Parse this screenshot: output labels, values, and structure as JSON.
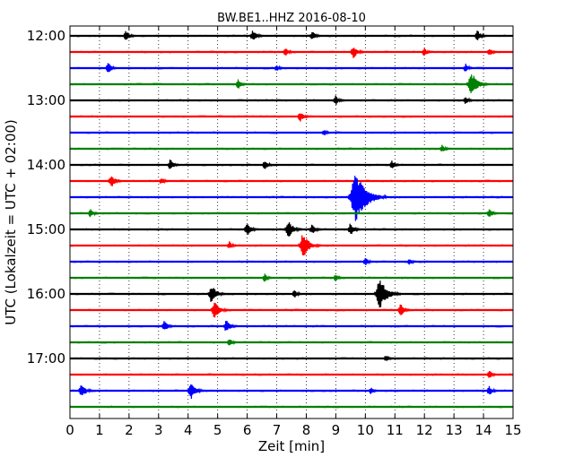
{
  "chart_data": {
    "type": "line",
    "title": "BW.BE1..HHZ 2016-08-10",
    "xlabel": "Zeit  [min]",
    "ylabel": "UTC (Lokalzeit = UTC + 02:00)",
    "xlim": [
      0,
      15
    ],
    "x_ticks": [
      "0",
      "1",
      "2",
      "3",
      "4",
      "5",
      "6",
      "7",
      "8",
      "9",
      "10",
      "11",
      "12",
      "13",
      "14",
      "15"
    ],
    "y_tick_labels": [
      "12:00",
      "13:00",
      "14:00",
      "15:00",
      "16:00",
      "17:00"
    ],
    "grid": "vertical dotted",
    "row_interval_minutes": 15,
    "colors": [
      "#000000",
      "#ff0000",
      "#0000ff",
      "#008000"
    ],
    "rows": [
      {
        "start": "12:00",
        "events": [
          [
            1.9,
            0.45
          ],
          [
            6.2,
            0.5
          ],
          [
            8.2,
            0.4
          ],
          [
            13.8,
            0.45
          ]
        ]
      },
      {
        "start": "12:15",
        "events": [
          [
            7.3,
            0.35
          ],
          [
            9.6,
            0.55
          ],
          [
            12.0,
            0.35
          ],
          [
            14.2,
            0.35
          ]
        ]
      },
      {
        "start": "12:30",
        "events": [
          [
            1.3,
            0.45
          ],
          [
            7.0,
            0.3
          ],
          [
            13.4,
            0.35
          ]
        ]
      },
      {
        "start": "12:45",
        "events": [
          [
            5.7,
            0.4
          ],
          [
            13.6,
            1.0
          ]
        ]
      },
      {
        "start": "13:00",
        "events": [
          [
            9.0,
            0.4
          ],
          [
            13.4,
            0.35
          ]
        ]
      },
      {
        "start": "13:15",
        "events": [
          [
            7.8,
            0.45
          ]
        ]
      },
      {
        "start": "13:30",
        "events": [
          [
            8.6,
            0.3
          ]
        ]
      },
      {
        "start": "13:45",
        "events": [
          [
            12.6,
            0.35
          ]
        ]
      },
      {
        "start": "14:00",
        "events": [
          [
            3.4,
            0.45
          ],
          [
            6.6,
            0.4
          ],
          [
            10.9,
            0.35
          ]
        ]
      },
      {
        "start": "14:15",
        "events": [
          [
            1.4,
            0.55
          ],
          [
            3.1,
            0.3
          ]
        ]
      },
      {
        "start": "14:30",
        "events": [
          [
            9.7,
            2.0
          ]
        ]
      },
      {
        "start": "14:45",
        "events": [
          [
            0.7,
            0.35
          ],
          [
            14.2,
            0.4
          ]
        ]
      },
      {
        "start": "15:00",
        "events": [
          [
            6.0,
            0.55
          ],
          [
            7.4,
            0.75
          ],
          [
            8.2,
            0.45
          ],
          [
            9.5,
            0.5
          ]
        ]
      },
      {
        "start": "15:15",
        "events": [
          [
            5.4,
            0.35
          ],
          [
            7.9,
            1.0
          ]
        ]
      },
      {
        "start": "15:30",
        "events": [
          [
            10.0,
            0.35
          ],
          [
            11.5,
            0.3
          ]
        ]
      },
      {
        "start": "15:45",
        "events": [
          [
            6.6,
            0.35
          ],
          [
            9.0,
            0.3
          ]
        ]
      },
      {
        "start": "16:00",
        "events": [
          [
            4.8,
            0.75
          ],
          [
            7.6,
            0.35
          ],
          [
            10.5,
            1.25
          ]
        ]
      },
      {
        "start": "16:15",
        "events": [
          [
            4.9,
            0.75
          ],
          [
            11.2,
            0.5
          ]
        ]
      },
      {
        "start": "16:30",
        "events": [
          [
            3.2,
            0.45
          ],
          [
            5.3,
            0.55
          ]
        ]
      },
      {
        "start": "16:45",
        "events": [
          [
            5.4,
            0.35
          ]
        ]
      },
      {
        "start": "17:00",
        "events": [
          [
            10.7,
            0.3
          ]
        ]
      },
      {
        "start": "17:15",
        "events": [
          [
            14.2,
            0.35
          ]
        ]
      },
      {
        "start": "17:30",
        "events": [
          [
            0.4,
            0.6
          ],
          [
            4.1,
            0.7
          ],
          [
            10.2,
            0.3
          ],
          [
            14.2,
            0.4
          ]
        ]
      },
      {
        "start": "17:45",
        "events": []
      }
    ]
  }
}
